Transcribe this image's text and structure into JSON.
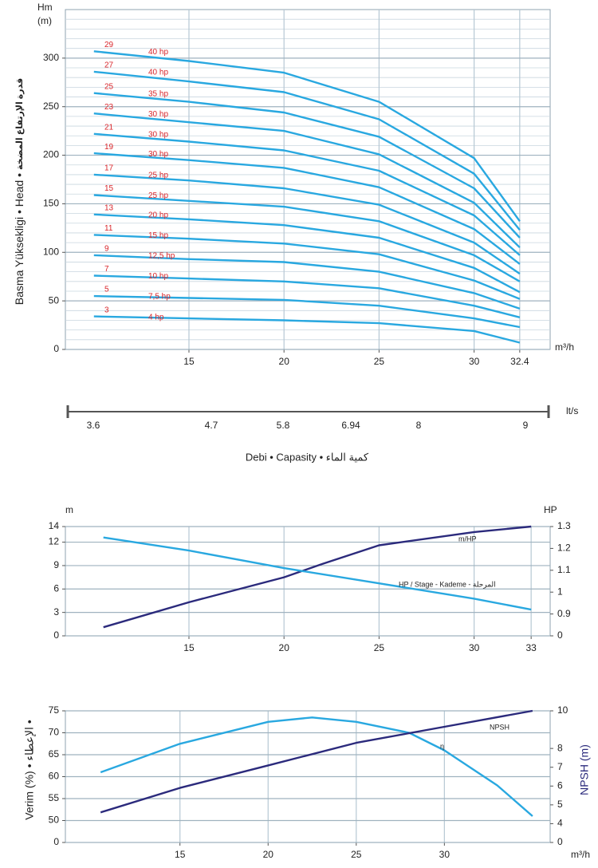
{
  "chart_data": [
    {
      "type": "line",
      "y_label": "Basma Yüksekligi • Head •",
      "y_label_ar": "قدرة الإرتفاع المضخة",
      "y_unit": [
        "Hm",
        "(m)"
      ],
      "x_unit": "m³/h",
      "x": [
        10,
        15,
        20,
        25,
        30,
        32.4
      ],
      "xlim": [
        8.5,
        34
      ],
      "xticks": [
        15,
        20,
        25,
        30,
        32.4
      ],
      "ylim": [
        0,
        350
      ],
      "yticks": [
        0,
        50,
        100,
        150,
        200,
        250,
        300
      ],
      "minor_yticks": [
        10,
        20,
        30,
        40,
        60,
        70,
        80,
        90,
        110,
        120,
        130,
        140,
        160,
        170,
        180,
        190,
        210,
        220,
        230,
        240,
        260,
        270,
        280,
        290,
        310,
        320,
        330,
        340
      ],
      "grid": true,
      "series": [
        {
          "name": "29",
          "label": "40 hp",
          "color": "#29a8e0",
          "values": [
            307,
            297,
            285,
            255,
            197,
            132
          ]
        },
        {
          "name": "27",
          "label": "40 hp",
          "color": "#29a8e0",
          "values": [
            286,
            276,
            265,
            237,
            181,
            123
          ]
        },
        {
          "name": "25",
          "label": "35 hp",
          "color": "#29a8e0",
          "values": [
            264,
            255,
            244,
            219,
            166,
            115
          ]
        },
        {
          "name": "23",
          "label": "30 hp",
          "color": "#29a8e0",
          "values": [
            243,
            234,
            225,
            201,
            151,
            105
          ]
        },
        {
          "name": "21",
          "label": "30 hp",
          "color": "#29a8e0",
          "values": [
            222,
            214,
            205,
            184,
            138,
            97
          ]
        },
        {
          "name": "19",
          "label": "30 hp",
          "color": "#29a8e0",
          "values": [
            202,
            195,
            187,
            167,
            124,
            88
          ]
        },
        {
          "name": "17",
          "label": "25 hp",
          "color": "#29a8e0",
          "values": [
            180,
            174,
            166,
            149,
            110,
            78
          ]
        },
        {
          "name": "15",
          "label": "25 hp",
          "color": "#29a8e0",
          "values": [
            159,
            153,
            147,
            132,
            97,
            70
          ]
        },
        {
          "name": "13",
          "label": "20 hp",
          "color": "#29a8e0",
          "values": [
            139,
            134,
            128,
            115,
            84,
            59
          ]
        },
        {
          "name": "11",
          "label": "15 hp",
          "color": "#29a8e0",
          "values": [
            118,
            114,
            109,
            98,
            71,
            52
          ]
        },
        {
          "name": "9",
          "label": "12,5 hp",
          "color": "#29a8e0",
          "values": [
            97,
            93,
            90,
            80,
            58,
            42
          ]
        },
        {
          "name": "7",
          "label": "10 hp",
          "color": "#29a8e0",
          "values": [
            76,
            73,
            70,
            63,
            45,
            33
          ]
        },
        {
          "name": "5",
          "label": "7,5 hp",
          "color": "#29a8e0",
          "values": [
            55,
            53,
            51,
            45,
            32,
            23
          ]
        },
        {
          "name": "3",
          "label": "4 hp",
          "color": "#29a8e0",
          "values": [
            34,
            32,
            30,
            27,
            19,
            7
          ]
        }
      ],
      "lts_ticks": [
        3.6,
        4.7,
        5.8,
        6.94,
        8,
        9
      ],
      "lts_unit": "lt/s",
      "caption": "Debi • Capasity • كمية الماء"
    },
    {
      "type": "line",
      "y_unit": "m",
      "y2_unit": "HP",
      "xlim": [
        8.5,
        34
      ],
      "xticks": [
        15,
        20,
        25,
        30,
        33
      ],
      "ylim": [
        0,
        14
      ],
      "yticks": [
        0,
        3,
        6,
        9,
        12,
        14
      ],
      "y2lim": [
        0.8,
        1.3
      ],
      "y2ticks": [
        0,
        0.9,
        1,
        1.1,
        1.2,
        1.3
      ],
      "y2_break": true,
      "grid": true,
      "series": [
        {
          "name": "m/HP",
          "color": "#2b2a7c",
          "x": [
            10.5,
            15,
            20,
            22,
            25,
            30,
            33
          ],
          "values": [
            1.1,
            4.3,
            7.5,
            9.2,
            11.6,
            13.3,
            14
          ]
        },
        {
          "name": "HP / Stage - Kademe - المرحلة",
          "color": "#29a8e0",
          "axis": "y2",
          "x": [
            10.5,
            15,
            20,
            25,
            30,
            33
          ],
          "values": [
            1.25,
            1.19,
            1.11,
            1.04,
            0.97,
            0.92
          ]
        }
      ]
    },
    {
      "type": "line",
      "y_label": "Verim (%) • الإعطاء •",
      "y2_label": "NPSH (m)",
      "x_unit": "m³/h",
      "xlim": [
        8.5,
        36
      ],
      "xticks": [
        15,
        20,
        25,
        30
      ],
      "ylim": [
        45,
        75
      ],
      "yticks": [
        0,
        50,
        55,
        60,
        65,
        70,
        75
      ],
      "y_break": true,
      "y2lim": [
        3,
        10
      ],
      "y2ticks": [
        0,
        4,
        5,
        6,
        7,
        8,
        10
      ],
      "y2_break": true,
      "grid": true,
      "series": [
        {
          "name": "η",
          "color": "#29a8e0",
          "x": [
            10.5,
            15,
            20,
            22.5,
            25,
            28,
            30,
            33,
            35
          ],
          "values": [
            61,
            67.5,
            72.5,
            73.5,
            72.5,
            70,
            66,
            58,
            51
          ]
        },
        {
          "name": "NPSH",
          "color": "#2b2a7c",
          "axis": "y2",
          "x": [
            10.5,
            15,
            20,
            25,
            30,
            35
          ],
          "values": [
            4.6,
            5.9,
            7.1,
            8.3,
            9.15,
            10
          ]
        }
      ]
    }
  ]
}
